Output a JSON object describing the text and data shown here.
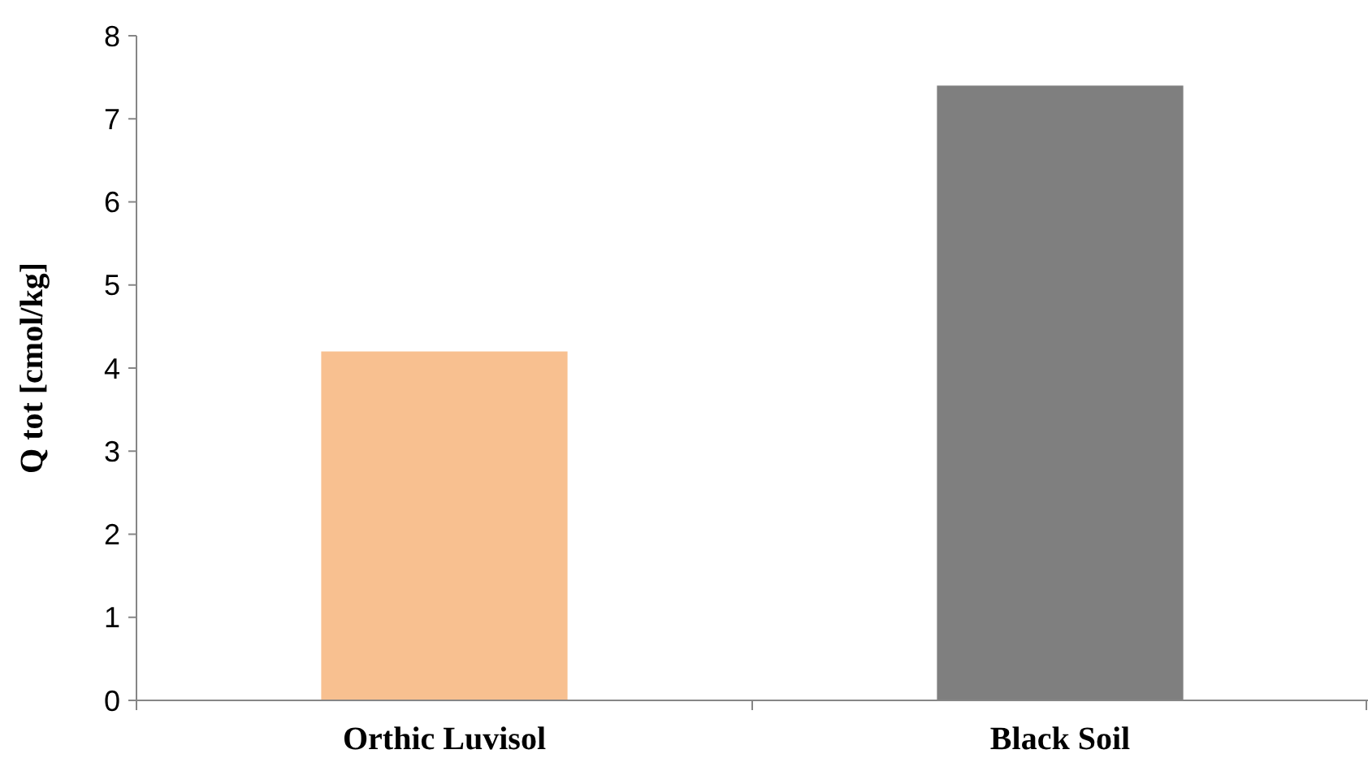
{
  "chart_data": {
    "type": "bar",
    "ylabel": "Q tot [cmol/kg]",
    "categories": [
      "Orthic Luvisol",
      "Black Soil"
    ],
    "values": [
      4.2,
      7.4
    ],
    "colors": [
      "#f8c090",
      "#7f7f7f"
    ],
    "ylim": [
      0,
      8
    ],
    "yticks": [
      0,
      1,
      2,
      3,
      4,
      5,
      6,
      7,
      8
    ],
    "grid": false
  }
}
